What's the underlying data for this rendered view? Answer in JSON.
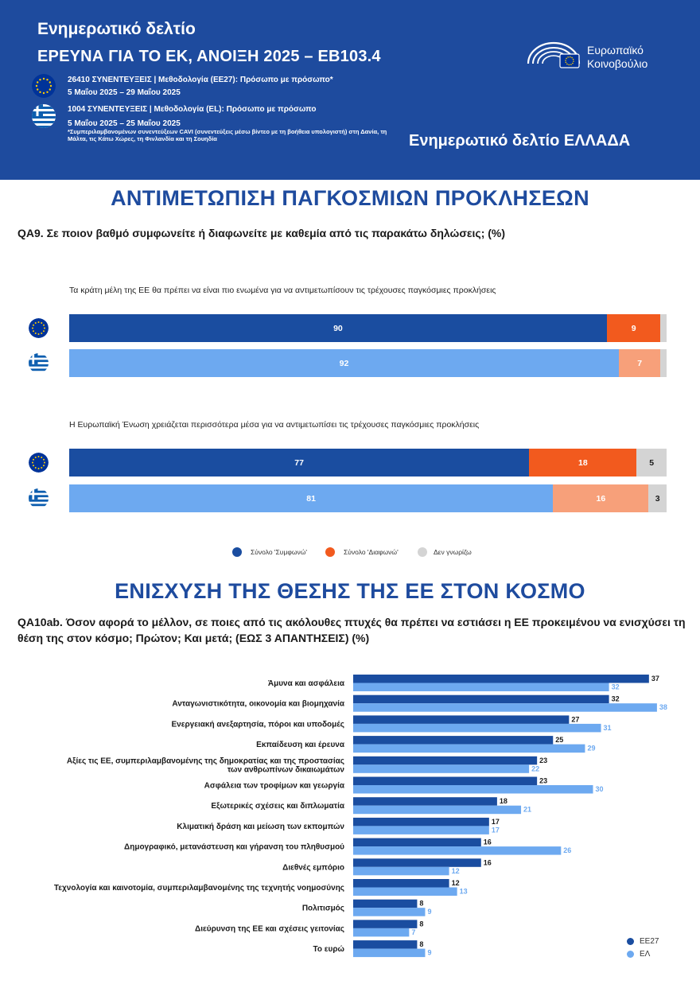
{
  "header": {
    "title": "Ενημερωτικό δελτίο",
    "subtitle": "ΕΡΕΥΝΑ ΓΙΑ ΤΟ ΕΚ, ΑΝΟΙΞΗ 2025 – EB103.4",
    "eu_line": "26410 ΣΥΝΕΝΤΕΥΞΕΙΣ | Μεθοδολογία (ΕΕ27): Πρόσωπο με πρόσωπο*",
    "eu_dates": "5 Μαΐου 2025 – 29 Μαΐου 2025",
    "el_line": "1004 ΣΥΝΕΝΤΕΥΞΕΙΣ | Μεθοδολογία (EL): Πρόσωπο με πρόσωπο",
    "el_dates": "5 Μαΐου 2025 – 25 Μαΐου 2025",
    "note": "*Συμπεριλαμβανομένων συνεντεύξεων CAVI (συνεντεύξεις μέσω βίντεο με τη βοήθεια υπολογιστή) στη Δανία, τη Μάλτα, τις Κάτω Χώρες, τη Φινλανδία και τη Σουηδία",
    "brand_line1": "Ευρωπαϊκό",
    "brand_line2": "Κοινοβούλιο",
    "right_title": "Ενημερωτικό δελτίο ΕΛΛΑΔΑ"
  },
  "section1": {
    "title": "ΑΝΤΙΜΕΤΩΠΙΣΗ ΠΑΓΚΟΣΜΙΩΝ ΠΡΟΚΛΗΣΕΩΝ",
    "question": "QA9. Σε ποιον βαθμό συμφωνείτε ή διαφωνείτε με καθεμία από τις παρακάτω δηλώσεις;  (%)"
  },
  "section2": {
    "title": "ΕΝΙΣΧΥΣΗ ΤΗΣ ΘΕΣΗΣ ΤΗΣ ΕΕ ΣΤΟΝ ΚΟΣΜΟ",
    "question": "QA10ab. Όσον αφορά το μέλλον, σε ποιες από τις ακόλουθες πτυχές θα πρέπει να εστιάσει η ΕΕ προκειμένου να ενισχύσει τη θέση της στον κόσμο; Πρώτον; Και μετά; (ΕΩΣ 3 ΑΠΑΝΤΗΣΕΙΣ) (%)"
  },
  "colors": {
    "header_bg": "#1E4B9E",
    "eu_agree": "#1A4DA0",
    "el_agree": "#6DA9F0",
    "eu_disagree": "#F25A1E",
    "el_disagree": "#F7A07A",
    "dont_know": "#D4D4D4",
    "eu27_bar": "#1A4DA0",
    "el_bar": "#6DA9F0"
  },
  "chart_data": [
    {
      "type": "bar",
      "orientation": "horizontal",
      "stacked": true,
      "legend": [
        "Σύνολο 'Συμφωνώ'",
        "Σύνολο 'Διαφωνώ'",
        "Δεν γνωρίζω"
      ],
      "legend_placement": "bottom",
      "statements": [
        {
          "label": "Τα κράτη μέλη της ΕΕ θα πρέπει να είναι πιο ενωμένα για να αντιμετωπίσουν τις τρέχουσες παγκόσμιες προκλήσεις",
          "rows": [
            {
              "group": "EU27",
              "agree": 90,
              "disagree": 9,
              "dont_know": 1,
              "dont_know_label": ""
            },
            {
              "group": "EL",
              "agree": 92,
              "disagree": 7,
              "dont_know": 1,
              "dont_know_label": ""
            }
          ]
        },
        {
          "label": "Η Ευρωπαϊκή Ένωση χρειάζεται περισσότερα μέσα για να αντιμετωπίσει τις τρέχουσες παγκόσμιες προκλήσεις",
          "rows": [
            {
              "group": "EU27",
              "agree": 77,
              "disagree": 18,
              "dont_know": 5,
              "dont_know_label": "5"
            },
            {
              "group": "EL",
              "agree": 81,
              "disagree": 16,
              "dont_know": 3,
              "dont_know_label": "3"
            }
          ]
        }
      ]
    },
    {
      "type": "bar",
      "orientation": "horizontal",
      "xlim": [
        0,
        40
      ],
      "legend_placement": "bottom-right",
      "categories": [
        [
          "Άμυνα και ασφάλεια"
        ],
        [
          "Ανταγωνιστικότητα, οικονομία και βιομηχανία"
        ],
        [
          "Ενεργειακή ανεξαρτησία, πόροι και υποδομές"
        ],
        [
          "Εκπαίδευση και έρευνα"
        ],
        [
          "Αξίες τις ΕΕ, συμπεριλαμβανομένης της δημοκρατίας και της προστασίας",
          "των ανθρωπίνων δικαιωμάτων"
        ],
        [
          "Ασφάλεια των τροφίμων και γεωργία"
        ],
        [
          "Εξωτερικές σχέσεις και διπλωματία"
        ],
        [
          "Κλιματική δράση και μείωση των εκπομπών"
        ],
        [
          "Δημογραφικό, μετανάστευση και γήρανση του πληθυσμού"
        ],
        [
          "Διεθνές εμπόριο"
        ],
        [
          "Τεχνολογία και καινοτομία, συμπεριλαμβανομένης της τεχνητής νοημοσύνης"
        ],
        [
          "Πολιτισμός"
        ],
        [
          "Διεύρυνση της ΕΕ και σχέσεις γειτονίας"
        ],
        [
          "Το ευρώ"
        ]
      ],
      "series": [
        {
          "name": "ΕΕ27",
          "values": [
            37,
            32,
            27,
            25,
            23,
            23,
            18,
            17,
            16,
            16,
            12,
            8,
            8,
            8
          ]
        },
        {
          "name": "ΕΛ",
          "values": [
            32,
            38,
            31,
            29,
            22,
            30,
            21,
            17,
            26,
            12,
            13,
            9,
            7,
            9
          ]
        }
      ]
    }
  ]
}
